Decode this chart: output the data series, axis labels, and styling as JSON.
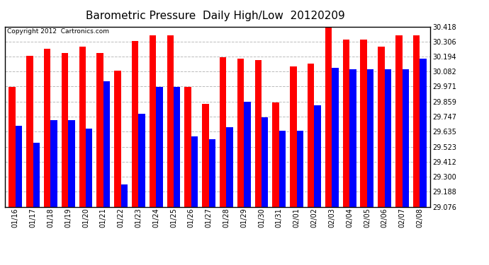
{
  "title": "Barometric Pressure  Daily High/Low  20120209",
  "copyright": "Copyright 2012  Cartronics.com",
  "dates": [
    "01/16",
    "01/17",
    "01/18",
    "01/19",
    "01/20",
    "01/21",
    "01/22",
    "01/23",
    "01/24",
    "01/25",
    "01/26",
    "01/27",
    "01/28",
    "01/29",
    "01/30",
    "01/31",
    "02/01",
    "02/02",
    "02/03",
    "02/04",
    "02/05",
    "02/06",
    "02/07",
    "02/08"
  ],
  "highs": [
    29.97,
    30.2,
    30.25,
    30.22,
    30.27,
    30.22,
    30.09,
    30.31,
    30.35,
    30.35,
    29.97,
    29.84,
    30.19,
    30.18,
    30.17,
    29.85,
    30.12,
    30.14,
    30.42,
    30.32,
    30.32,
    30.27,
    30.35,
    30.35
  ],
  "lows": [
    29.68,
    29.55,
    29.72,
    29.72,
    29.66,
    30.01,
    29.24,
    29.77,
    29.97,
    29.97,
    29.6,
    29.58,
    29.67,
    29.86,
    29.74,
    29.64,
    29.64,
    29.83,
    30.11,
    30.1,
    30.1,
    30.1,
    30.1,
    30.18
  ],
  "ymin": 29.076,
  "ymax": 30.418,
  "yticks": [
    29.076,
    29.188,
    29.3,
    29.412,
    29.523,
    29.635,
    29.747,
    29.859,
    29.971,
    30.082,
    30.194,
    30.306,
    30.418
  ],
  "high_color": "#ff0000",
  "low_color": "#0000ff",
  "bg_color": "#ffffff",
  "grid_color": "#aaaaaa",
  "title_fontsize": 11,
  "bar_width": 0.38
}
